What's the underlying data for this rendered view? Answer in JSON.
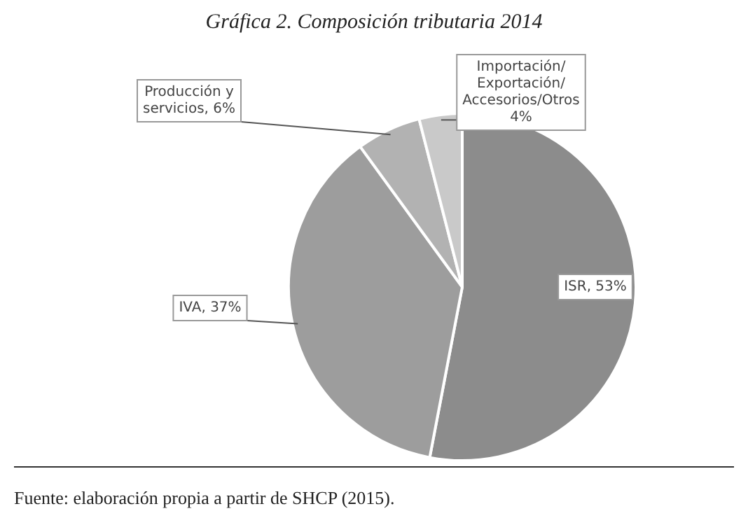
{
  "chart_data": {
    "type": "pie",
    "title": "Gráfica 2. Composición tributaria 2014",
    "categories": [
      "ISR",
      "IVA",
      "Producción y servicios",
      "Importación/ Exportación/ Accesorios/Otros"
    ],
    "values": [
      53,
      37,
      6,
      4
    ],
    "colors": [
      "#8c8c8c",
      "#9d9d9d",
      "#b2b2b2",
      "#c9c9c9"
    ],
    "value_labels": [
      "53%",
      "37%",
      "6%",
      "4%"
    ],
    "annotations": [
      "Fuente: elaboración propia a partir de SHCP (2015)."
    ],
    "legend": false
  }
}
